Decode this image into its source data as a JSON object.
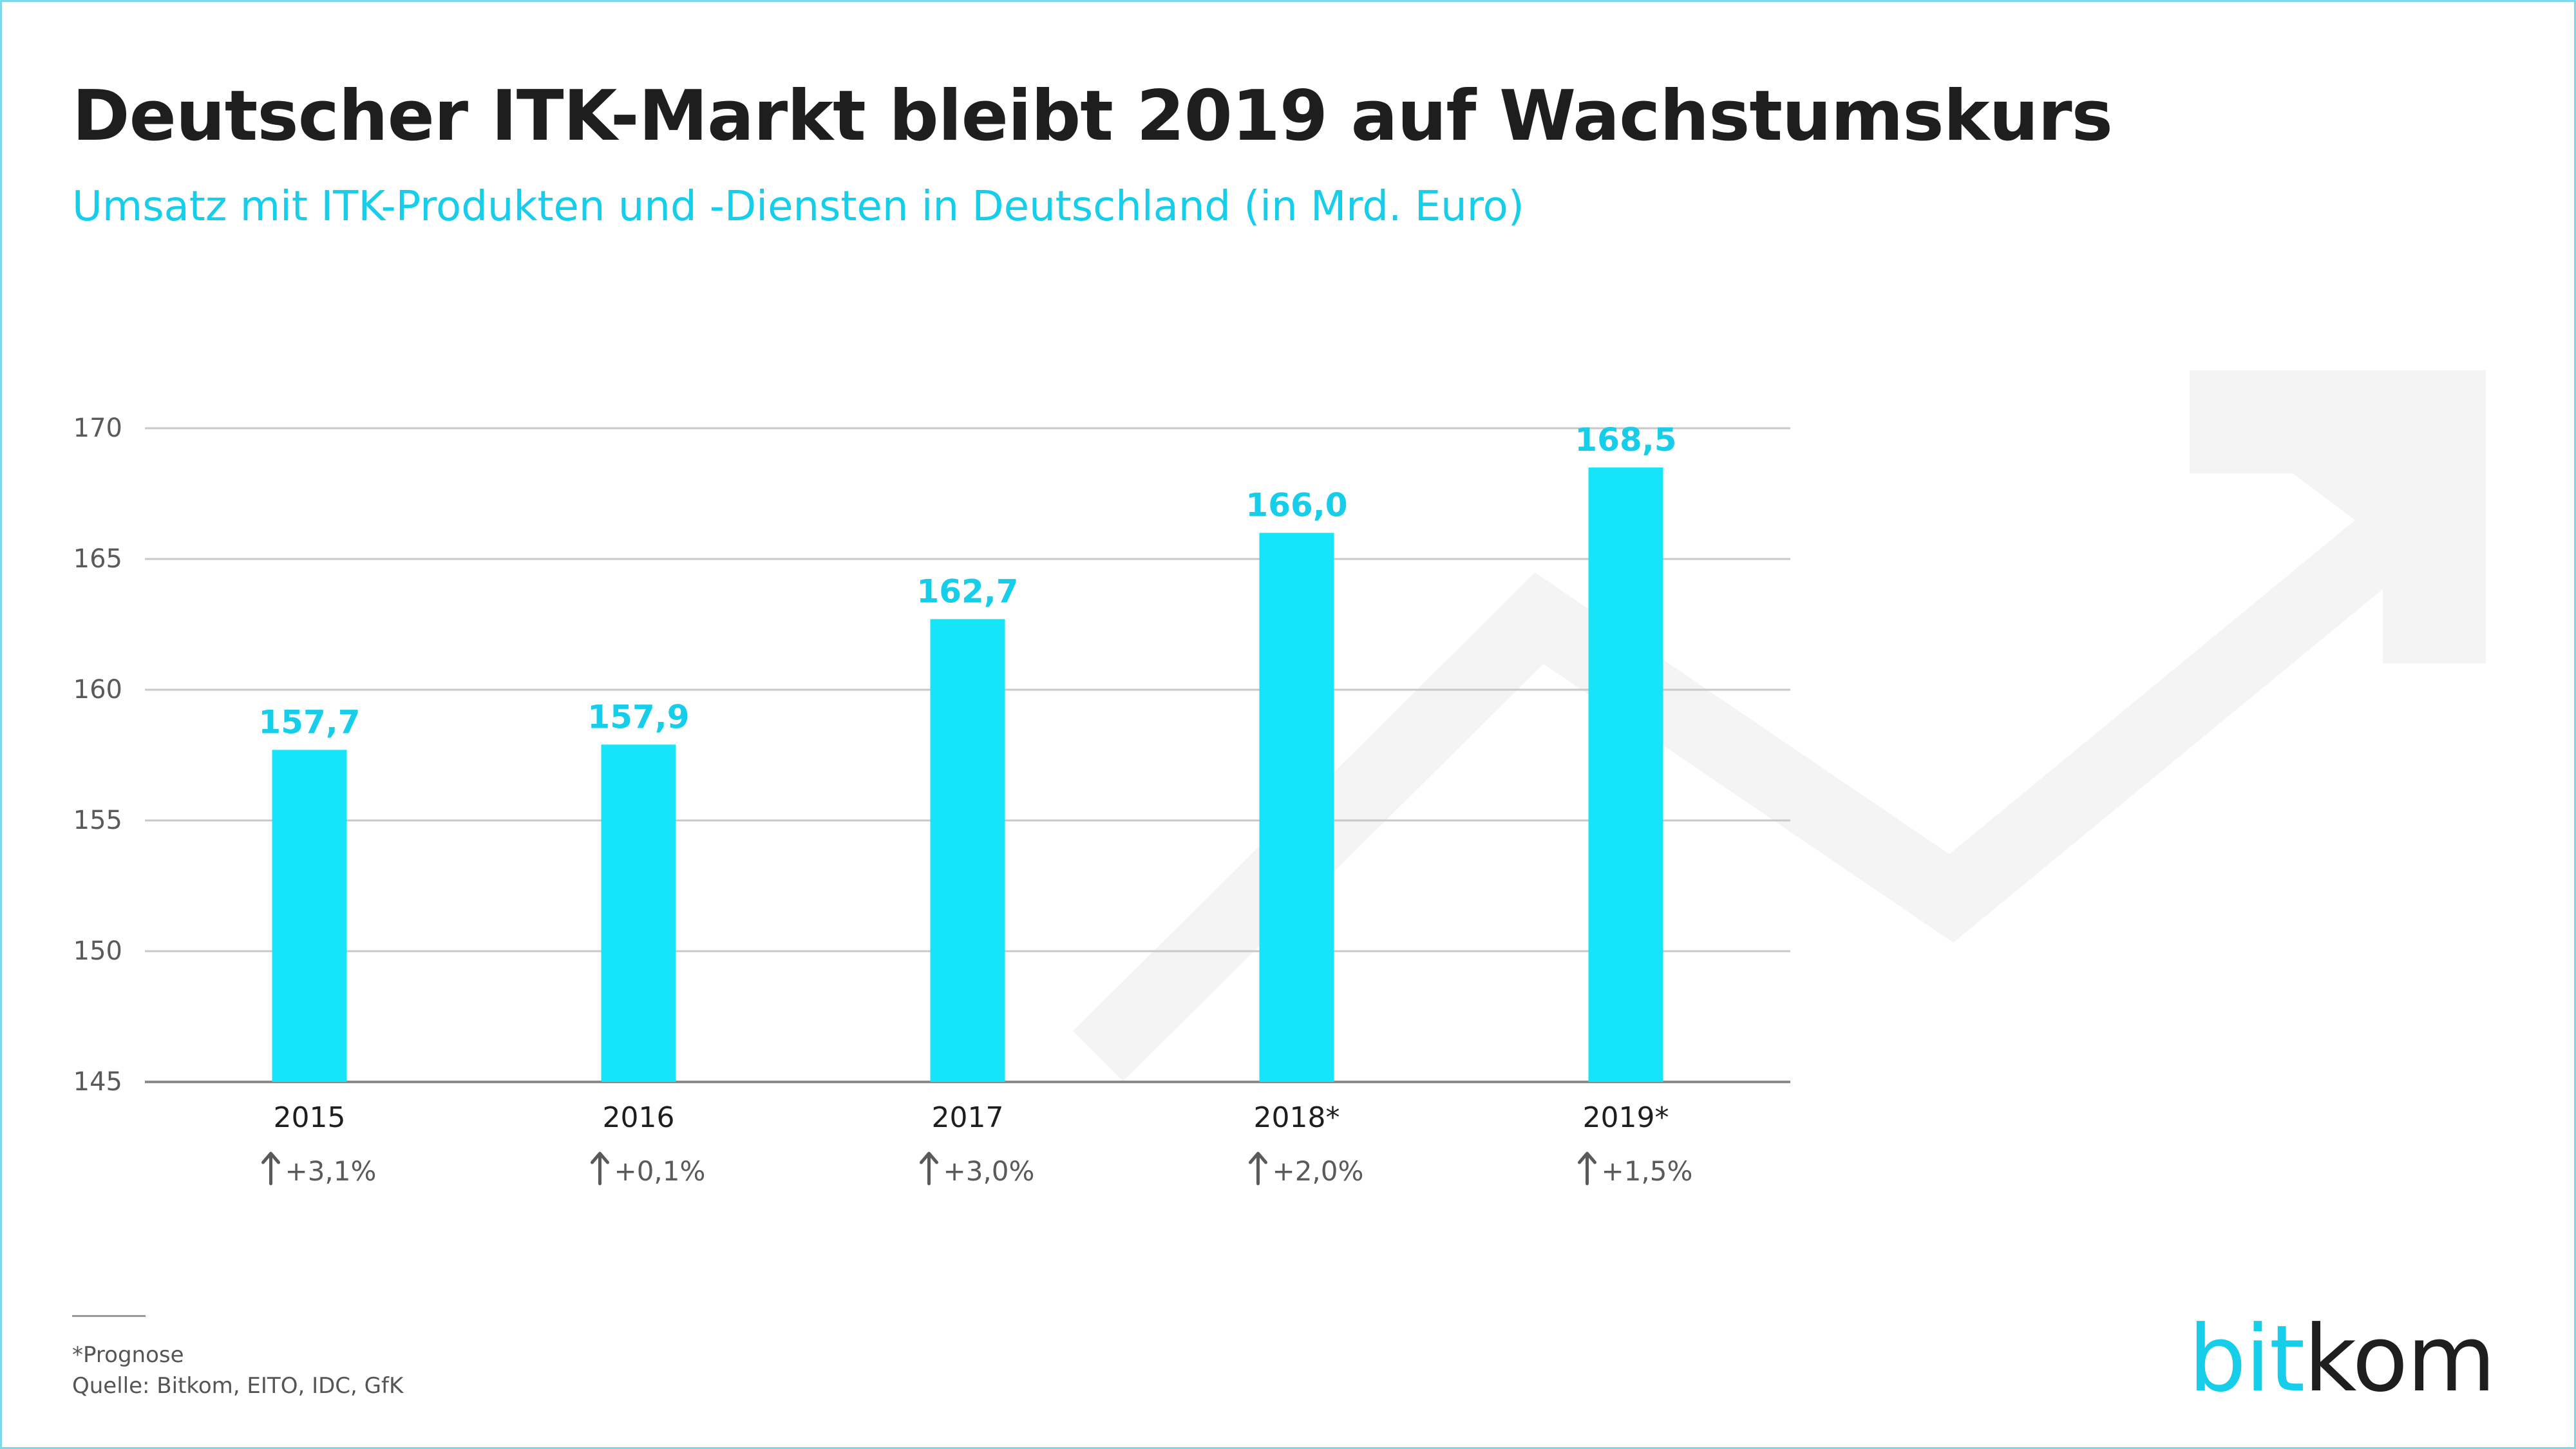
{
  "title": "Deutscher ITK-Markt bleibt 2019 auf Wachstumskurs",
  "subtitle": "Umsatz mit ITK-Produkten und -Diensten in Deutschland (in Mrd. Euro)",
  "colors": {
    "bar": "#16e4f9",
    "value_label": "#16cdea",
    "accent": "#16cdea",
    "grid": "#c8c8c8",
    "axis": "#8a8a8a",
    "text": "#1e1e1e",
    "muted": "#5a5a5a",
    "arrow_bg": "#f4f4f4"
  },
  "chart_data": {
    "type": "bar",
    "categories": [
      "2015",
      "2016",
      "2017",
      "2018*",
      "2019*"
    ],
    "values": [
      157.7,
      157.9,
      162.7,
      166.0,
      168.5
    ],
    "value_labels": [
      "157,7",
      "157,9",
      "162,7",
      "166,0",
      "168,5"
    ],
    "growth": [
      "+3,1%",
      "+0,1%",
      "+3,0%",
      "+2,0%",
      "+1,5%"
    ],
    "growth_icon": "up-arrow-icon",
    "ylim": [
      145,
      170
    ],
    "yticks": [
      145,
      150,
      155,
      160,
      165,
      170
    ],
    "grid": true,
    "xlabel": "",
    "ylabel": ""
  },
  "footnote": {
    "line1": "*Prognose",
    "line2": "Quelle: Bitkom, EITO, IDC, GfK"
  },
  "logo": {
    "part1": "bit",
    "part2": "kom"
  }
}
